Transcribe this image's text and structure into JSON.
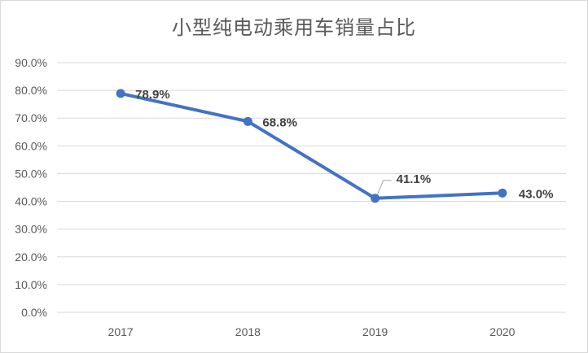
{
  "chart_data": {
    "type": "line",
    "title": "小型纯电动乘用车销量占比",
    "xlabel": "",
    "ylabel": "",
    "categories": [
      "2017",
      "2018",
      "2019",
      "2020"
    ],
    "series": [
      {
        "values": [
          78.9,
          68.8,
          41.1,
          43.0
        ],
        "labels": [
          "78.9%",
          "68.8%",
          "41.1%",
          "43.0%"
        ]
      }
    ],
    "ylim": [
      0,
      90
    ],
    "yticks": [
      0,
      10,
      20,
      30,
      40,
      50,
      60,
      70,
      80,
      90
    ],
    "ytick_labels": [
      "0.0%",
      "10.0%",
      "20.0%",
      "30.0%",
      "40.0%",
      "50.0%",
      "60.0%",
      "70.0%",
      "80.0%",
      "90.0%"
    ],
    "grid": true,
    "legend": "none",
    "colors": {
      "line": "#4472c4",
      "grid": "#d9d9d9",
      "text": "#595959",
      "label": "#404040"
    }
  }
}
